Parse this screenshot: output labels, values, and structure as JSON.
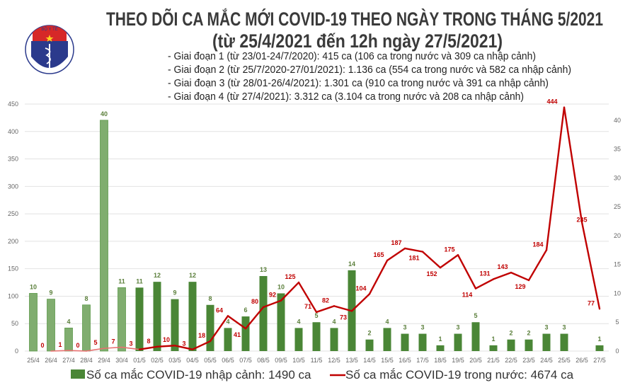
{
  "header": {
    "logo_text": "BỘ Y TẾ · MINISTRY OF HEALTH",
    "title": "THEO DÕI CA MẮC MỚI COVID-19 THEO NGÀY TRONG THÁNG 5/2021",
    "subtitle": "(từ 25/4/2021 đến 12h ngày 27/5/2021)",
    "notes": [
      "- Giai đoạn 1 (từ 23/01-24/7/2020): 415 ca (106 ca trong nước và 309 ca nhập cảnh)",
      "- Giai đoạn 2 (từ 25/7/2020-27/01/2021): 1.136 ca (554 ca trong nước và 582 ca nhập cảnh)",
      "- Giai đoạn 3 (từ 28/01-26/4/2021): 1.301 ca (910 ca trong nước và 391 ca nhập cảnh)",
      "- Giai đoạn 4 (từ 27/4/2021): 3.312 ca (3.104 ca trong nước và 208 ca nhập cảnh)"
    ]
  },
  "chart_data": {
    "type": "bar+line",
    "title": "THEO DÕI CA MẮC MỚI COVID-19 THEO NGÀY TRONG THÁNG 5/2021",
    "categories": [
      "25/4",
      "26/4",
      "27/4",
      "28/4",
      "29/4",
      "30/4",
      "01/5",
      "02/5",
      "03/5",
      "04/5",
      "05/5",
      "06/5",
      "07/5",
      "08/5",
      "09/5",
      "10/5",
      "11/5",
      "12/5",
      "13/5",
      "14/5",
      "15/5",
      "16/5",
      "17/5",
      "18/5",
      "19/5",
      "20/5",
      "21/5",
      "22/5",
      "23/5",
      "24/5",
      "25/5",
      "26/5",
      "27/5"
    ],
    "series": [
      {
        "name": "Số ca mắc COVID-19 nhập cảnh: 1490 ca",
        "type": "bar",
        "axis": "right",
        "color": "#4a8636",
        "early_color": "#80ad6f",
        "values": [
          10,
          9,
          4,
          8,
          40,
          11,
          11,
          12,
          9,
          12,
          8,
          4,
          6,
          13,
          10,
          4,
          5,
          4,
          14,
          2,
          4,
          3,
          3,
          1,
          3,
          5,
          1,
          2,
          2,
          3,
          3,
          null,
          1
        ]
      },
      {
        "name": "Số ca mắc COVID-19 trong nước: 4674 ca",
        "type": "line",
        "axis": "left",
        "color": "#c00000",
        "early_color": "#e87070",
        "values": [
          null,
          0,
          1,
          0,
          5,
          7,
          3,
          8,
          10,
          3,
          18,
          64,
          41,
          80,
          92,
          125,
          71,
          82,
          73,
          104,
          165,
          187,
          181,
          152,
          175,
          114,
          131,
          143,
          129,
          184,
          444,
          235,
          77
        ]
      }
    ],
    "y_left": {
      "range": [
        0,
        450
      ],
      "ticks": [
        0,
        50,
        100,
        150,
        200,
        250,
        300,
        350,
        400,
        450
      ]
    },
    "y_right": {
      "range": [
        0,
        42.8
      ],
      "ticks": [
        0,
        5,
        10,
        15,
        20,
        25,
        30,
        35,
        40
      ]
    },
    "grid": true,
    "legend": "bottom"
  }
}
